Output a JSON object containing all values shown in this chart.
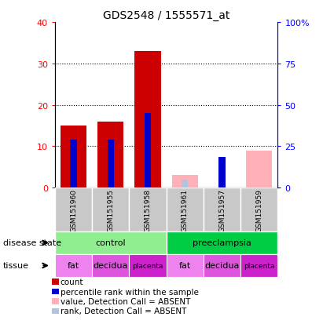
{
  "title": "GDS2548 / 1555571_at",
  "samples": [
    "GSM151960",
    "GSM151955",
    "GSM151958",
    "GSM151961",
    "GSM151957",
    "GSM151959"
  ],
  "count_values": [
    15,
    16,
    33,
    0,
    0,
    0
  ],
  "percentile_values": [
    11.5,
    11.5,
    18,
    0,
    7.5,
    0
  ],
  "absent_value_values": [
    0,
    0,
    0,
    3,
    0,
    9
  ],
  "absent_rank_values": [
    0,
    0,
    0,
    2,
    0,
    0
  ],
  "count_color": "#cc0000",
  "percentile_color": "#0000cc",
  "absent_value_color": "#ffb0b8",
  "absent_rank_color": "#b0c4de",
  "control_color": "#90ee90",
  "preeclampsia_color": "#00cc44",
  "tissue_fat_color": "#ee82ee",
  "tissue_decidua_color": "#dd55dd",
  "tissue_placenta_color": "#cc22cc",
  "sample_box_color": "#c8c8c8",
  "ylim_left": [
    0,
    40
  ],
  "ylim_right": [
    0,
    100
  ],
  "yticks_left": [
    0,
    10,
    20,
    30,
    40
  ],
  "ytick_labels_left": [
    "0",
    "10",
    "20",
    "30",
    "40"
  ],
  "ytick_labels_right": [
    "0",
    "25",
    "50",
    "75",
    "100%"
  ],
  "legend_items": [
    {
      "label": "count",
      "color": "#cc0000"
    },
    {
      "label": "percentile rank within the sample",
      "color": "#0000cc"
    },
    {
      "label": "value, Detection Call = ABSENT",
      "color": "#ffb0b8"
    },
    {
      "label": "rank, Detection Call = ABSENT",
      "color": "#b0c4de"
    }
  ]
}
